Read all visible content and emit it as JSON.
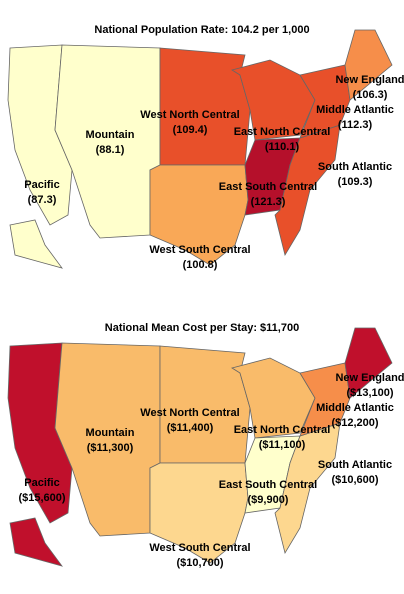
{
  "maps": [
    {
      "title": "National Population Rate: 104.2 per 1,000",
      "regions": [
        {
          "name": "Pacific",
          "value": "(87.3)",
          "color": "#ffffcc"
        },
        {
          "name": "Mountain",
          "value": "(88.1)",
          "color": "#ffffcc"
        },
        {
          "name": "West North Central",
          "value": "(109.4)",
          "color": "#e8502a"
        },
        {
          "name": "West South Central",
          "value": "(100.8)",
          "color": "#f9a857"
        },
        {
          "name": "East North Central",
          "value": "(110.1)",
          "color": "#e8502a"
        },
        {
          "name": "East South Central",
          "value": "(121.3)",
          "color": "#b5102b"
        },
        {
          "name": "South Atlantic",
          "value": "(109.3)",
          "color": "#e8502a"
        },
        {
          "name": "Middle Atlantic",
          "value": "(112.3)",
          "color": "#e8502a"
        },
        {
          "name": "New England",
          "value": "(106.3)",
          "color": "#f68e4a"
        }
      ]
    },
    {
      "title": "National Mean Cost per Stay: $11,700",
      "regions": [
        {
          "name": "Pacific",
          "value": "($15,600)",
          "color": "#c0102c"
        },
        {
          "name": "Mountain",
          "value": "($11,300)",
          "color": "#f9bb6a"
        },
        {
          "name": "West North Central",
          "value": "($11,400)",
          "color": "#f9bb6a"
        },
        {
          "name": "West South Central",
          "value": "($10,700)",
          "color": "#fdd78f"
        },
        {
          "name": "East North Central",
          "value": "($11,100)",
          "color": "#f9bb6a"
        },
        {
          "name": "East South Central",
          "value": "($9,900)",
          "color": "#ffffcc"
        },
        {
          "name": "South Atlantic",
          "value": "($10,600)",
          "color": "#fdd78f"
        },
        {
          "name": "Middle Atlantic",
          "value": "($12,200)",
          "color": "#f68e4a"
        },
        {
          "name": "New England",
          "value": "($13,100)",
          "color": "#c0102c"
        }
      ]
    }
  ]
}
